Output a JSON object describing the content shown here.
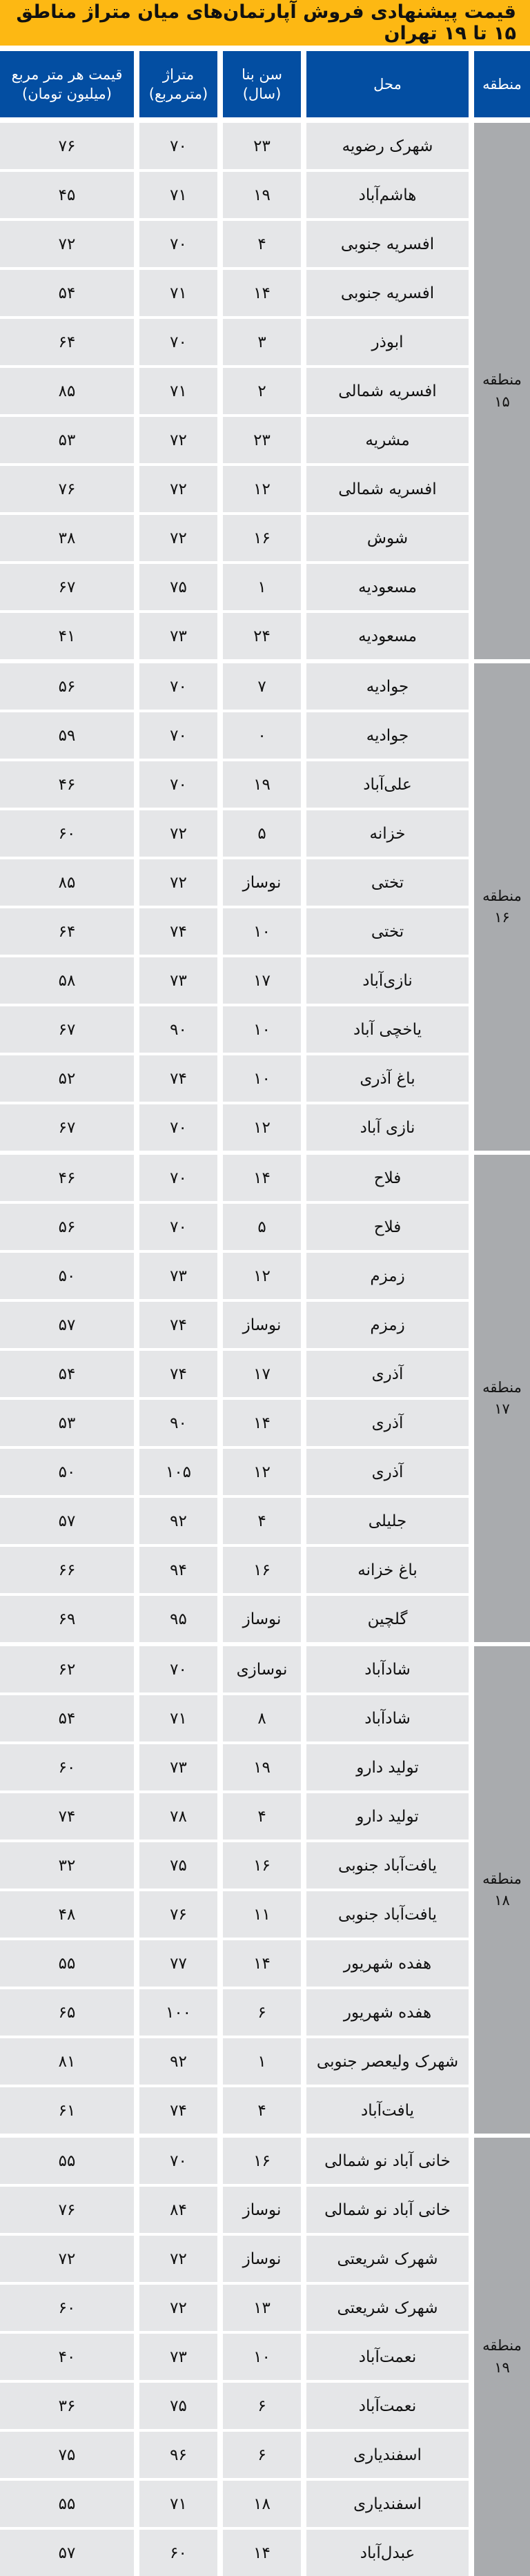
{
  "title": "قیمت پیشنهادی فروش آپارتمان‌های میان متراژ مناطق ۱۵ تا ۱۹ تهران",
  "colors": {
    "title_bg": "#fdb813",
    "header_bg": "#034ea2",
    "row_bg": "#e5e6e8",
    "region_bg": "#a9abae"
  },
  "headers": {
    "price": [
      "قیمت هر متر مربع",
      "(میلیون تومان)"
    ],
    "area": [
      "متراژ",
      "(مترمربع)"
    ],
    "age": [
      "سن بنا",
      "(سال)"
    ],
    "location": "محل",
    "region": "منطقه"
  },
  "regions": [
    {
      "label": "منطقه",
      "number": "۱۵",
      "rows": [
        [
          "شهرک رضویه",
          "۲۳",
          "۷۰",
          "۷۶"
        ],
        [
          "هاشم‌آباد",
          "۱۹",
          "۷۱",
          "۴۵"
        ],
        [
          "افسریه جنوبی",
          "۴",
          "۷۰",
          "۷۲"
        ],
        [
          "افسریه جنوبی",
          "۱۴",
          "۷۱",
          "۵۴"
        ],
        [
          "ابوذر",
          "۳",
          "۷۰",
          "۶۴"
        ],
        [
          "افسریه شمالی",
          "۲",
          "۷۱",
          "۸۵"
        ],
        [
          "مشریه",
          "۲۳",
          "۷۲",
          "۵۳"
        ],
        [
          "افسریه شمالی",
          "۱۲",
          "۷۲",
          "۷۶"
        ],
        [
          "شوش",
          "۱۶",
          "۷۲",
          "۳۸"
        ],
        [
          "مسعودیه",
          "۱",
          "۷۵",
          "۶۷"
        ],
        [
          "مسعودیه",
          "۲۴",
          "۷۳",
          "۴۱"
        ]
      ]
    },
    {
      "label": "منطقه",
      "number": "۱۶",
      "rows": [
        [
          "جوادیه",
          "۷",
          "۷۰",
          "۵۶"
        ],
        [
          "جوادیه",
          "۰",
          "۷۰",
          "۵۹"
        ],
        [
          "علی‌آباد",
          "۱۹",
          "۷۰",
          "۴۶"
        ],
        [
          "خزانه",
          "۵",
          "۷۲",
          "۶۰"
        ],
        [
          "تختی",
          "نوساز",
          "۷۲",
          "۸۵"
        ],
        [
          "تختی",
          "۱۰",
          "۷۴",
          "۶۴"
        ],
        [
          "نازی‌آباد",
          "۱۷",
          "۷۳",
          "۵۸"
        ],
        [
          "یاخچی آباد",
          "۱۰",
          "۹۰",
          "۶۷"
        ],
        [
          "باغ آذری",
          "۱۰",
          "۷۴",
          "۵۲"
        ],
        [
          "نازی آباد",
          "۱۲",
          "۷۰",
          "۶۷"
        ]
      ]
    },
    {
      "label": "منطقه",
      "number": "۱۷",
      "rows": [
        [
          "فلاح",
          "۱۴",
          "۷۰",
          "۴۶"
        ],
        [
          "فلاح",
          "۵",
          "۷۰",
          "۵۶"
        ],
        [
          "زمزم",
          "۱۲",
          "۷۳",
          "۵۰"
        ],
        [
          "زمزم",
          "نوساز",
          "۷۴",
          "۵۷"
        ],
        [
          "آذری",
          "۱۷",
          "۷۴",
          "۵۴"
        ],
        [
          "آذری",
          "۱۴",
          "۹۰",
          "۵۳"
        ],
        [
          "آذری",
          "۱۲",
          "۱۰۵",
          "۵۰"
        ],
        [
          "جلیلی",
          "۴",
          "۹۲",
          "۵۷"
        ],
        [
          "باغ خزانه",
          "۱۶",
          "۹۴",
          "۶۶"
        ],
        [
          "گلچین",
          "نوساز",
          "۹۵",
          "۶۹"
        ]
      ]
    },
    {
      "label": "منطقه",
      "number": "۱۸",
      "rows": [
        [
          "شادآباد",
          "نوسازی",
          "۷۰",
          "۶۲"
        ],
        [
          "شادآباد",
          "۸",
          "۷۱",
          "۵۴"
        ],
        [
          "تولید دارو",
          "۱۹",
          "۷۳",
          "۶۰"
        ],
        [
          "تولید دارو",
          "۴",
          "۷۸",
          "۷۴"
        ],
        [
          "یافت‌آباد جنوبی",
          "۱۶",
          "۷۵",
          "۳۲"
        ],
        [
          "یافت‌آباد جنوبی",
          "۱۱",
          "۷۶",
          "۴۸"
        ],
        [
          "هفده شهریور",
          "۱۴",
          "۷۷",
          "۵۵"
        ],
        [
          "هفده شهریور",
          "۶",
          "۱۰۰",
          "۶۵"
        ],
        [
          "شهرک ولیعصر جنوبی",
          "۱",
          "۹۲",
          "۸۱"
        ],
        [
          "یافت‌آباد",
          "۴",
          "۷۴",
          "۶۱"
        ]
      ]
    },
    {
      "label": "منطقه",
      "number": "۱۹",
      "rows": [
        [
          "خانی آباد نو شمالی",
          "۱۶",
          "۷۰",
          "۵۵"
        ],
        [
          "خانی آباد نو شمالی",
          "نوساز",
          "۸۴",
          "۷۶"
        ],
        [
          "شهرک شریعتی",
          "نوساز",
          "۷۲",
          "۷۲"
        ],
        [
          "شهرک شریعتی",
          "۱۳",
          "۷۲",
          "۶۰"
        ],
        [
          "نعمت‌آباد",
          "۱۰",
          "۷۳",
          "۴۰"
        ],
        [
          "نعمت‌آباد",
          "۶",
          "۷۵",
          "۳۶"
        ],
        [
          "اسفندیاری",
          "۶",
          "۹۶",
          "۷۵"
        ],
        [
          "اسفندیاری",
          "۱۸",
          "۷۱",
          "۵۵"
        ],
        [
          "عبدل‌آباد",
          "۱۴",
          "۶۰",
          "۵۷"
        ]
      ]
    }
  ]
}
